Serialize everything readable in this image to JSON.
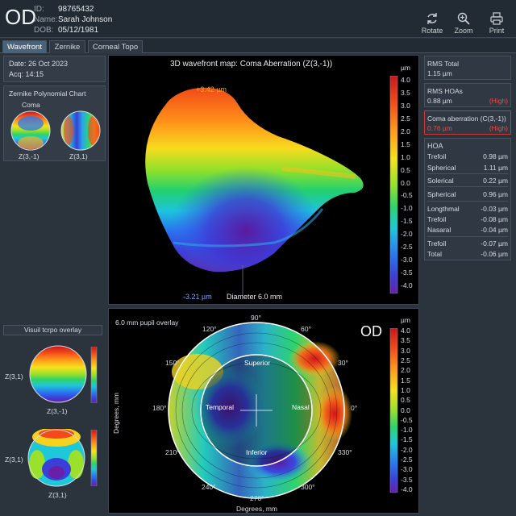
{
  "header": {
    "eye": "OD",
    "id_label": "ID:",
    "id": "98765432",
    "name_label": "Name:",
    "name": "Sarah Johnson",
    "dob_label": "DOB:",
    "dob": "05/12/1981",
    "tools": [
      {
        "label": "Rotate",
        "icon": "rotate-icon"
      },
      {
        "label": "Zoom",
        "icon": "zoom-icon"
      },
      {
        "label": "Print",
        "icon": "print-icon"
      }
    ]
  },
  "tabs": [
    {
      "label": "Wavefront",
      "active": true
    },
    {
      "label": "Zernike",
      "active": false
    },
    {
      "label": "Corneal Topo",
      "active": false
    }
  ],
  "left": {
    "date": "Date: 26 Oct 2023",
    "acq": "Acq:  14:15",
    "chart_title": "Zernike Polynomial Chart",
    "coma_label": "Coma",
    "map_a": "Z(3,-1)",
    "map_b": "Z(3,1)",
    "overlay_title": "Visuil tcrpo overlay",
    "ov1_side": "Z(3,1)",
    "ov1_bottom": "Z(3,-1)",
    "ov2_side": "Z(3,1)",
    "ov2_bottom": "Z(3,1)"
  },
  "wavefront": {
    "title": "3D wavefront map: Coma Aberration (Z(3,-1))",
    "peak": "+3.42 µm",
    "trough": "-3.21 µm",
    "diameter": "Diameter 6.0 mm",
    "unit": "µm",
    "scale": [
      "4.0",
      "3.5",
      "3.0",
      "2.5",
      "2.0",
      "1.5",
      "1.0",
      "0.5",
      "0.0",
      "-0.5",
      "-1.0",
      "-1.5",
      "-2.0",
      "-2.5",
      "-3.0",
      "-3.5",
      "-4.0"
    ]
  },
  "overlay": {
    "title": "6.0 mm pupil overlay",
    "eye": "OD",
    "unit": "µm",
    "xlabel": "Degrees, mm",
    "ylabel": "Degrees, mm",
    "superior": "Superior",
    "inferior": "Inferior",
    "temporal": "Temporal",
    "nasal": "Nasal",
    "angles": [
      "90°",
      "60°",
      "30°",
      "0°",
      "330°",
      "300°",
      "270°",
      "240°",
      "210°",
      "180°",
      "150°",
      "120°"
    ],
    "scale": [
      "4.0",
      "3.5",
      "3.0",
      "2.5",
      "2.0",
      "1.5",
      "1.0",
      "0.5",
      "0.0",
      "-0.5",
      "-1.0",
      "-1.5",
      "-2.0",
      "-2.5",
      "-3.0",
      "-3.5",
      "-4.0"
    ]
  },
  "metrics": {
    "rms_total_label": "RMS Total",
    "rms_total": "1.15 µm",
    "rms_hoa_label": "RMS HOAs",
    "rms_hoa": "0.88 µm",
    "rms_hoa_flag": "(High)",
    "coma_label": "Coma aberration (C(3,-1))",
    "coma": "0.76 µm",
    "coma_flag": "(High)",
    "hoa_title": "HOA",
    "rows": [
      {
        "label": "Trefoil",
        "value": "0.98 µm"
      },
      {
        "label": "Spherical",
        "value": "1.11 µm"
      },
      {
        "label": "Solerical",
        "value": "0.22 µm"
      },
      {
        "label": "Spherical",
        "value": "0.96 µm"
      },
      {
        "label": "Longthmal",
        "value": "-0.03 µm"
      },
      {
        "label": "Trefoil",
        "value": "-0.08 µm"
      },
      {
        "label": "Nasaral",
        "value": "-0.04 µm"
      },
      {
        "label": "Trefoil",
        "value": "-0.07 µm"
      },
      {
        "label": "Total",
        "value": "-0.06 µm"
      }
    ]
  },
  "colors": {
    "accent": "#49637b",
    "flag": "#e2504a",
    "jet_high": "#d7191c",
    "jet_low": "#5b1fa8"
  }
}
